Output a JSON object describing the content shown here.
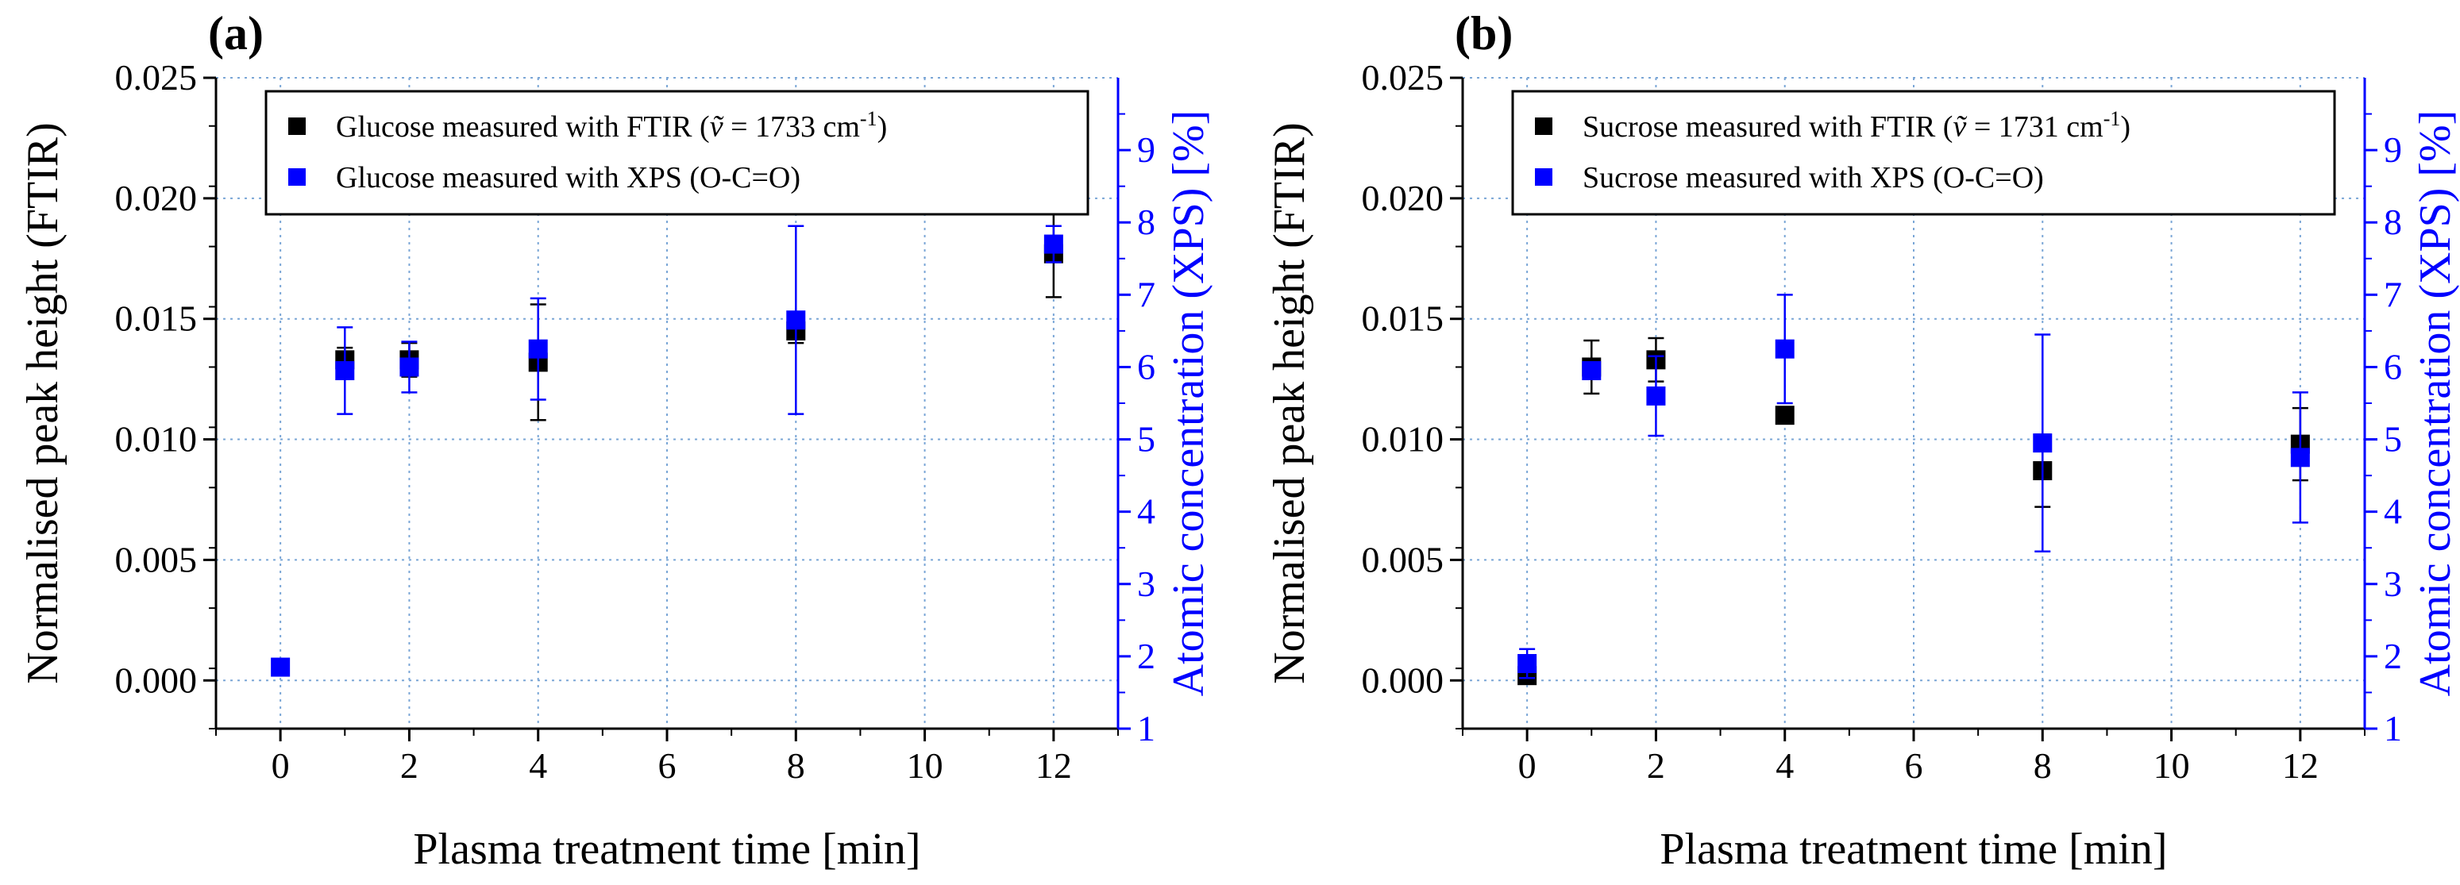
{
  "chart_data": [
    {
      "panel_label": "(a)",
      "type": "scatter",
      "xlabel": "Plasma treatment time [min]",
      "ylabel": "Normalised peak height (FTIR)",
      "y2label": "Atomic concentration (XPS) [%]",
      "xlim": [
        -1,
        13
      ],
      "ylim": [
        -0.002,
        0.025
      ],
      "y2lim": [
        1,
        10
      ],
      "x_ticks": [
        "0",
        "2",
        "4",
        "6",
        "8",
        "10",
        "12"
      ],
      "y_ticks": [
        "0.000",
        "0.005",
        "0.010",
        "0.015",
        "0.020",
        "0.025"
      ],
      "y2_ticks": [
        "1",
        "2",
        "3",
        "4",
        "5",
        "6",
        "7",
        "8",
        "9"
      ],
      "grid": true,
      "legend": "top",
      "series": [
        {
          "name": "Glucose measured with FTIR",
          "legend_suffix": "= 1733 cm",
          "legend_nu": "ṽ",
          "legend_exp": "-1",
          "axis": "left",
          "color": "#000000",
          "x": [
            1,
            2,
            4,
            8,
            12
          ],
          "y": [
            0.0133,
            0.0133,
            0.0132,
            0.0145,
            0.0177
          ],
          "err": [
            0.0005,
            0.0007,
            0.0024,
            0.0005,
            0.0018
          ]
        },
        {
          "name": "Glucose measured with XPS (O-C=O)",
          "axis": "right",
          "color": "#0000ff",
          "x": [
            0,
            1,
            2,
            4,
            8,
            12
          ],
          "y": [
            1.85,
            5.95,
            6.0,
            6.25,
            6.65,
            7.7
          ],
          "err": [
            0,
            0.6,
            0.35,
            0.7,
            1.3,
            0.25
          ]
        }
      ]
    },
    {
      "panel_label": "(b)",
      "type": "scatter",
      "xlabel": "Plasma treatment time [min]",
      "ylabel": "Normalised peak height (FTIR)",
      "y2label": "Atomic concentration (XPS) [%]",
      "xlim": [
        -1,
        13
      ],
      "ylim": [
        -0.002,
        0.025
      ],
      "y2lim": [
        1,
        10
      ],
      "x_ticks": [
        "0",
        "2",
        "4",
        "6",
        "8",
        "10",
        "12"
      ],
      "y_ticks": [
        "0.000",
        "0.005",
        "0.010",
        "0.015",
        "0.020",
        "0.025"
      ],
      "y2_ticks": [
        "1",
        "2",
        "3",
        "4",
        "5",
        "6",
        "7",
        "8",
        "9"
      ],
      "grid": true,
      "legend": "top",
      "series": [
        {
          "name": "Sucrose measured with FTIR",
          "legend_suffix": "= 1731 cm",
          "legend_nu": "ṽ",
          "legend_exp": "-1",
          "axis": "left",
          "color": "#000000",
          "x": [
            0,
            1,
            2,
            4,
            8,
            12
          ],
          "y": [
            0.0002,
            0.013,
            0.0133,
            0.011,
            0.0087,
            0.0098
          ],
          "err": [
            0.0003,
            0.0011,
            0.0009,
            0.0002,
            0.0015,
            0.0015
          ]
        },
        {
          "name": "Sucrose measured with XPS (O-C=O)",
          "axis": "right",
          "color": "#0000ff",
          "x": [
            0,
            1,
            2,
            4,
            8,
            12
          ],
          "y": [
            1.9,
            5.95,
            5.6,
            6.25,
            4.95,
            4.75
          ],
          "err": [
            0.2,
            0,
            0.55,
            0.75,
            1.5,
            0.9
          ]
        }
      ]
    }
  ]
}
